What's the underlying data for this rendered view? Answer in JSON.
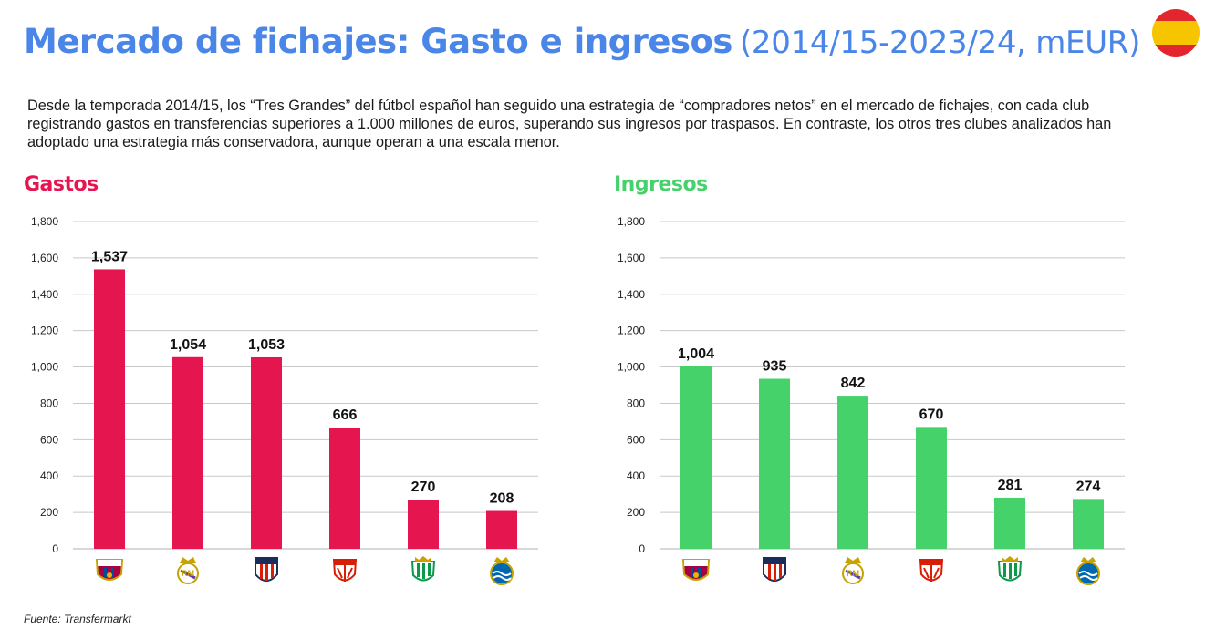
{
  "header": {
    "title_main": "Mercado de fichajes: Gasto e ingresos",
    "title_sub": "(2014/15-2023/24, mEUR)"
  },
  "flag_icon": "spain-flag-icon",
  "intro": "Desde la temporada 2014/15, los “Tres Grandes” del fútbol español han seguido una estrategia de “compradores netos” en el mercado de fichajes, con cada club registrando gastos en transferencias superiores a 1.000 millones de euros, superando sus ingresos por traspasos. En contraste, los otros tres clubes analizados han adoptado una estrategia más conservadora, aunque operan a una escala menor.",
  "source": "Fuente: Transfermarkt",
  "chart_data": [
    {
      "type": "bar",
      "title": "Gastos",
      "color": "#e5154f",
      "categories": [
        "fc-barcelona-crest-icon",
        "real-madrid-crest-icon",
        "atletico-madrid-crest-icon",
        "sevilla-crest-icon",
        "real-betis-crest-icon",
        "real-sociedad-crest-icon"
      ],
      "values": [
        1537,
        1054,
        1053,
        666,
        270,
        208
      ],
      "value_labels": [
        "1,537",
        "1,054",
        "1,053",
        "666",
        "270",
        "208"
      ],
      "yticks": [
        "0",
        "200",
        "400",
        "600",
        "800",
        "1,000",
        "1,200",
        "1,400",
        "1,600",
        "1,800"
      ],
      "ylim": [
        0,
        1800
      ],
      "grid": true
    },
    {
      "type": "bar",
      "title": "Ingresos",
      "color": "#46d26b",
      "categories": [
        "fc-barcelona-crest-icon",
        "atletico-madrid-crest-icon",
        "real-madrid-crest-icon",
        "sevilla-crest-icon",
        "real-betis-crest-icon",
        "real-sociedad-crest-icon"
      ],
      "values": [
        1004,
        935,
        842,
        670,
        281,
        274
      ],
      "value_labels": [
        "1,004",
        "935",
        "842",
        "670",
        "281",
        "274"
      ],
      "yticks": [
        "0",
        "200",
        "400",
        "600",
        "800",
        "1,000",
        "1,200",
        "1,400",
        "1,600",
        "1,800"
      ],
      "ylim": [
        0,
        1800
      ],
      "grid": true
    }
  ]
}
